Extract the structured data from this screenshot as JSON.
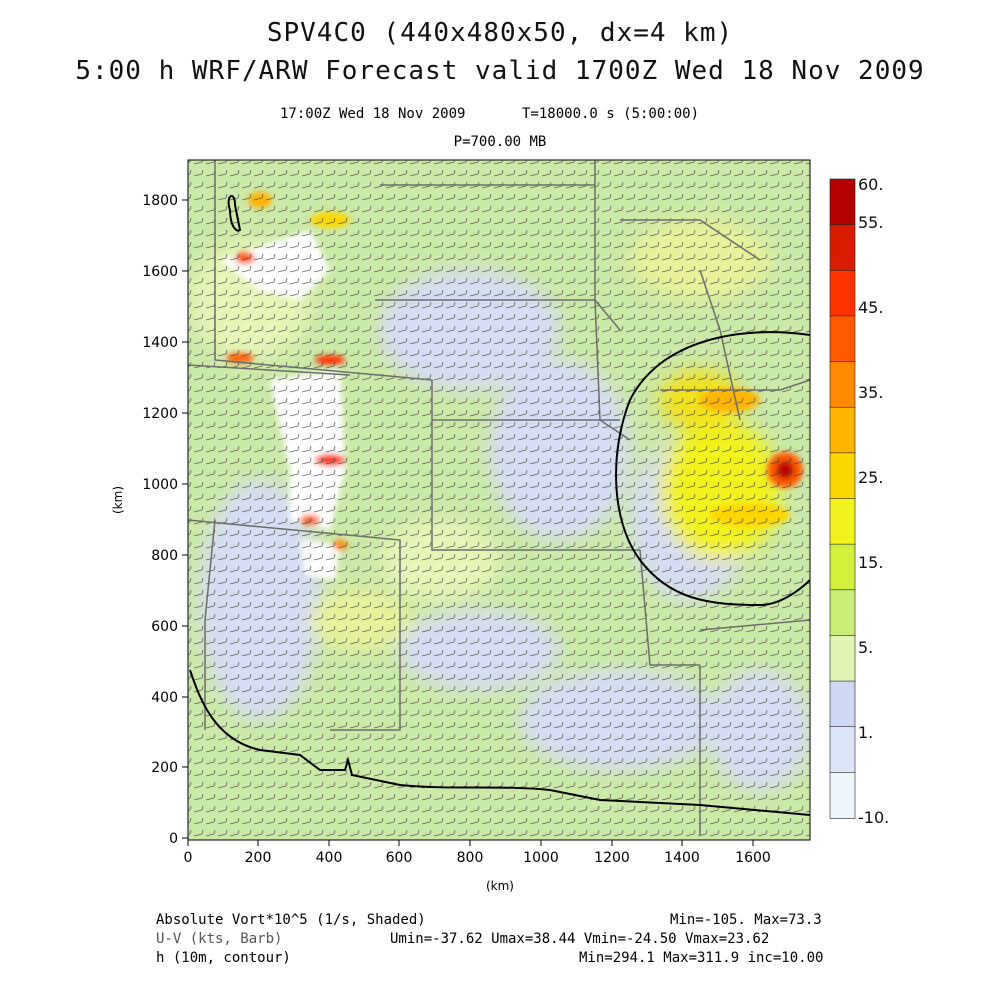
{
  "header": {
    "title_line1": "SPV4C0 (440x480x50, dx=4 km)",
    "title_line2": "5:00 h WRF/ARW Forecast valid 1700Z Wed 18 Nov 2009",
    "valid_time": "17:00Z Wed 18 Nov 2009",
    "model_time": "T=18000.0 s (5:00:00)",
    "pressure_level": "P=700.00 MB"
  },
  "axes": {
    "x_label": "(km)",
    "y_label": "(km)",
    "x_ticks": [
      "0",
      "200",
      "400",
      "600",
      "800",
      "1000",
      "1200",
      "1400",
      "1600"
    ],
    "y_ticks": [
      "0",
      "200",
      "400",
      "600",
      "800",
      "1000",
      "1200",
      "1400",
      "1600",
      "1800"
    ],
    "x_range_km": [
      0,
      1760
    ],
    "y_range_km": [
      0,
      1920
    ]
  },
  "colorbar": {
    "labels": [
      "60.",
      "55.",
      "45.",
      "35.",
      "25.",
      "15.",
      "5.",
      "1.",
      "-10."
    ],
    "colors": [
      "#b30000",
      "#d81c00",
      "#ff3300",
      "#ff5a00",
      "#ff8a00",
      "#ffb400",
      "#ffd700",
      "#f2f21e",
      "#d2f03c",
      "#c8ee78",
      "#e0f5b4",
      "#cfd8f2",
      "#dce6f8",
      "#eef6fc"
    ]
  },
  "footer": {
    "row1_left": "Absolute Vort*10^5 (1/s, Shaded)",
    "row1_right": "Min=-105. Max=73.3",
    "row2_left": "U-V (kts, Barb)",
    "row2_right": "Umin=-37.62 Umax=38.44 Vmin=-24.50 Vmax=23.62",
    "row3_left": "h (10m, contour)",
    "row3_right": "Min=294.1 Max=311.9 inc=10.00"
  }
}
